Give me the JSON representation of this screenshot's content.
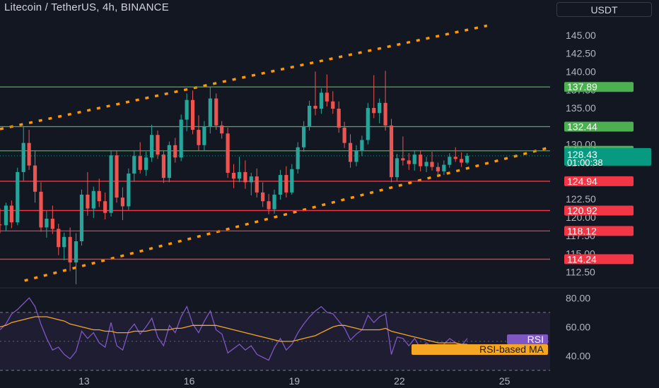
{
  "header": {
    "title": "Litecoin / TetherUS, 4h, BINANCE",
    "currency": "USDT"
  },
  "colors": {
    "background": "#131722",
    "up": "#26a69a",
    "down": "#ef5350",
    "resistance": "#4caf50",
    "support": "#f23645",
    "channel": "#ff9800",
    "rsi": "#7e57c2",
    "rsi_ma": "#f5a623",
    "current_price_label": "#089981"
  },
  "chart_data": [
    {
      "type": "candlestick",
      "name": "price",
      "y_axis_ticks": [
        "145.00",
        "142.50",
        "140.00",
        "137.50",
        "135.00",
        "132.50",
        "130.00",
        "127.50",
        "125.00",
        "122.50",
        "120.00",
        "117.50",
        "115.00",
        "112.50"
      ],
      "ylim": [
        110.6,
        147.5
      ],
      "x_ticks": [
        {
          "label": "13",
          "x": 13
        },
        {
          "label": "16",
          "x": 16
        },
        {
          "label": "19",
          "x": 19
        },
        {
          "label": "22",
          "x": 22
        },
        {
          "label": "25",
          "x": 25
        }
      ],
      "xlim": [
        10.6,
        26.3
      ],
      "horizontal_levels": [
        {
          "value": 137.89,
          "label": "137.89",
          "kind": "resistance"
        },
        {
          "value": 132.44,
          "label": "132.44",
          "kind": "resistance"
        },
        {
          "value": 129.12,
          "label": "129.12",
          "kind": "resistance"
        },
        {
          "value": 124.94,
          "label": "124.94",
          "kind": "support"
        },
        {
          "value": 120.92,
          "label": "120.92",
          "kind": "support"
        },
        {
          "value": 118.12,
          "label": "118.12",
          "kind": "support"
        },
        {
          "value": 114.24,
          "label": "114.24",
          "kind": "support"
        }
      ],
      "channel_lines": [
        {
          "x0": 10.6,
          "y0": 132.1,
          "x1": 24.5,
          "y1": 146.3
        },
        {
          "x0": 11.3,
          "y0": 111.3,
          "x1": 26.3,
          "y1": 129.6
        }
      ],
      "current_price": {
        "value": 128.43,
        "label": "128.43",
        "countdown": "01:00:38"
      },
      "ohlc": [
        [
          10.6,
          119.0,
          121.2,
          117.8,
          118.9
        ],
        [
          10.77,
          118.9,
          122.0,
          118.1,
          121.6
        ],
        [
          10.93,
          121.6,
          122.3,
          118.5,
          119.3
        ],
        [
          11.1,
          119.3,
          126.8,
          118.9,
          126.2
        ],
        [
          11.27,
          126.2,
          132.5,
          125.0,
          130.2
        ],
        [
          11.43,
          130.2,
          132.0,
          126.5,
          127.1
        ],
        [
          11.6,
          127.1,
          129.2,
          122.0,
          123.5
        ],
        [
          11.77,
          123.5,
          124.8,
          118.0,
          118.6
        ],
        [
          11.93,
          118.6,
          120.9,
          117.2,
          119.8
        ],
        [
          12.1,
          119.8,
          121.6,
          117.7,
          118.4
        ],
        [
          12.27,
          118.4,
          119.1,
          114.8,
          115.9
        ],
        [
          12.43,
          115.9,
          117.9,
          114.1,
          117.3
        ],
        [
          12.6,
          117.3,
          118.6,
          112.6,
          113.8
        ],
        [
          12.77,
          113.8,
          117.8,
          110.8,
          116.7
        ],
        [
          12.93,
          116.7,
          123.8,
          116.1,
          123.1
        ],
        [
          13.1,
          123.1,
          126.2,
          120.2,
          121.2
        ],
        [
          13.27,
          121.2,
          124.2,
          119.9,
          123.6
        ],
        [
          13.43,
          123.6,
          125.3,
          121.4,
          122.2
        ],
        [
          13.6,
          122.2,
          123.4,
          119.7,
          120.6
        ],
        [
          13.77,
          120.6,
          129.2,
          120.1,
          128.5
        ],
        [
          13.93,
          128.5,
          129.2,
          122.0,
          122.7
        ],
        [
          14.1,
          122.7,
          124.1,
          119.6,
          121.5
        ],
        [
          14.27,
          121.5,
          126.7,
          121.0,
          126.0
        ],
        [
          14.43,
          126.0,
          129.2,
          124.9,
          128.4
        ],
        [
          14.6,
          128.4,
          130.3,
          126.0,
          126.5
        ],
        [
          14.77,
          126.5,
          129.0,
          125.7,
          128.2
        ],
        [
          14.93,
          128.2,
          132.7,
          127.6,
          131.3
        ],
        [
          15.1,
          131.3,
          131.9,
          128.0,
          128.6
        ],
        [
          15.27,
          128.6,
          129.2,
          124.7,
          125.4
        ],
        [
          15.43,
          125.4,
          130.4,
          124.8,
          129.9
        ],
        [
          15.6,
          129.9,
          130.9,
          127.5,
          128.2
        ],
        [
          15.77,
          128.2,
          134.1,
          127.7,
          133.4
        ],
        [
          15.93,
          133.4,
          137.0,
          131.8,
          136.1
        ],
        [
          16.1,
          136.1,
          137.4,
          131.4,
          132.0
        ],
        [
          16.27,
          132.0,
          134.0,
          129.1,
          129.9
        ],
        [
          16.43,
          129.9,
          133.2,
          129.1,
          132.4
        ],
        [
          16.6,
          132.4,
          137.9,
          131.5,
          136.3
        ],
        [
          16.77,
          136.3,
          137.0,
          132.0,
          132.6
        ],
        [
          16.93,
          132.6,
          133.2,
          130.8,
          131.5
        ],
        [
          17.1,
          131.5,
          132.3,
          125.4,
          126.1
        ],
        [
          17.27,
          126.1,
          127.3,
          124.0,
          125.3
        ],
        [
          17.43,
          125.3,
          128.3,
          124.8,
          126.2
        ],
        [
          17.6,
          126.2,
          127.8,
          123.9,
          124.8
        ],
        [
          17.77,
          124.8,
          126.1,
          123.0,
          125.6
        ],
        [
          17.93,
          125.6,
          126.7,
          122.7,
          123.4
        ],
        [
          18.1,
          123.4,
          124.8,
          121.4,
          122.2
        ],
        [
          18.27,
          122.2,
          123.2,
          120.4,
          121.1
        ],
        [
          18.43,
          121.1,
          123.8,
          120.5,
          123.1
        ],
        [
          18.6,
          123.1,
          126.5,
          122.4,
          125.8
        ],
        [
          18.77,
          125.8,
          127.0,
          122.7,
          123.4
        ],
        [
          18.93,
          123.4,
          127.3,
          123.1,
          126.6
        ],
        [
          19.1,
          126.6,
          130.3,
          126.0,
          129.6
        ],
        [
          19.27,
          129.6,
          133.2,
          129.0,
          132.5
        ],
        [
          19.43,
          132.5,
          136.0,
          131.9,
          135.3
        ],
        [
          19.6,
          135.3,
          140.0,
          134.0,
          134.9
        ],
        [
          19.77,
          134.9,
          137.7,
          134.2,
          137.1
        ],
        [
          19.93,
          137.1,
          139.6,
          135.2,
          135.9
        ],
        [
          20.1,
          135.9,
          137.3,
          134.2,
          134.9
        ],
        [
          20.27,
          134.9,
          135.9,
          131.6,
          132.3
        ],
        [
          20.43,
          132.3,
          133.1,
          129.5,
          130.2
        ],
        [
          20.6,
          130.2,
          131.4,
          126.8,
          127.6
        ],
        [
          20.77,
          127.6,
          129.9,
          127.0,
          129.2
        ],
        [
          20.93,
          129.2,
          131.2,
          128.4,
          130.6
        ],
        [
          21.1,
          130.6,
          135.7,
          130.0,
          135.0
        ],
        [
          21.27,
          135.0,
          139.5,
          133.6,
          134.3
        ],
        [
          21.43,
          134.3,
          136.3,
          132.9,
          135.7
        ],
        [
          21.6,
          135.7,
          140.1,
          131.9,
          132.6
        ],
        [
          21.77,
          132.6,
          133.5,
          124.8,
          125.5
        ],
        [
          21.93,
          125.5,
          128.7,
          125.0,
          128.1
        ],
        [
          22.1,
          128.1,
          131.1,
          127.1,
          127.8
        ],
        [
          22.27,
          127.8,
          128.8,
          126.5,
          127.3
        ],
        [
          22.43,
          127.3,
          129.2,
          126.4,
          128.6
        ],
        [
          22.6,
          128.6,
          129.2,
          126.3,
          127.0
        ],
        [
          22.77,
          127.0,
          128.3,
          126.2,
          127.6
        ],
        [
          22.93,
          127.6,
          129.0,
          126.4,
          126.9
        ],
        [
          23.1,
          126.9,
          127.5,
          125.7,
          126.3
        ],
        [
          23.27,
          126.3,
          127.8,
          125.8,
          127.2
        ],
        [
          23.43,
          127.2,
          128.8,
          126.8,
          128.3
        ],
        [
          23.6,
          128.3,
          129.6,
          127.6,
          128.0
        ],
        [
          23.77,
          128.0,
          128.9,
          126.9,
          127.5
        ],
        [
          23.93,
          127.5,
          128.8,
          127.3,
          128.43
        ]
      ]
    },
    {
      "type": "line",
      "name": "rsi-panel",
      "y_axis_ticks": [
        "80.00",
        "60.00",
        "40.00"
      ],
      "ylim": [
        30,
        85
      ],
      "band": [
        30,
        70
      ],
      "series": [
        {
          "name": "RSI",
          "color": "#7e57c2",
          "values": [
            58,
            62,
            69,
            72,
            76,
            80,
            74,
            62,
            52,
            44,
            46,
            41,
            38,
            43,
            57,
            52,
            56,
            49,
            46,
            63,
            47,
            44,
            57,
            62,
            55,
            60,
            66,
            53,
            47,
            61,
            56,
            67,
            74,
            62,
            56,
            64,
            71,
            58,
            55,
            42,
            45,
            48,
            44,
            47,
            41,
            39,
            37,
            46,
            52,
            44,
            48,
            56,
            62,
            67,
            71,
            74,
            70,
            69,
            64,
            59,
            51,
            55,
            58,
            68,
            63,
            67,
            69,
            41,
            53,
            52,
            47,
            52,
            45,
            49,
            46,
            44,
            48,
            52,
            49,
            47,
            52
          ]
        },
        {
          "name": "RSI-based MA",
          "color": "#f5a623",
          "values": [
            60,
            61,
            63,
            64,
            65,
            66,
            67,
            67,
            67,
            66,
            65,
            64,
            62,
            61,
            60,
            59,
            58,
            58,
            57,
            57,
            56,
            56,
            56,
            57,
            57,
            57,
            58,
            58,
            58,
            58,
            59,
            59,
            60,
            61,
            61,
            61,
            61,
            61,
            60,
            59,
            58,
            57,
            56,
            55,
            54,
            53,
            52,
            51,
            50,
            50,
            50,
            51,
            52,
            53,
            54,
            56,
            58,
            60,
            61,
            61,
            60,
            59,
            58,
            58,
            58,
            58,
            59,
            57,
            56,
            55,
            54,
            53,
            52,
            51,
            50,
            49,
            49,
            49,
            49,
            48,
            48
          ]
        }
      ],
      "x_start": 10.6,
      "x_step": 0.1667
    }
  ]
}
